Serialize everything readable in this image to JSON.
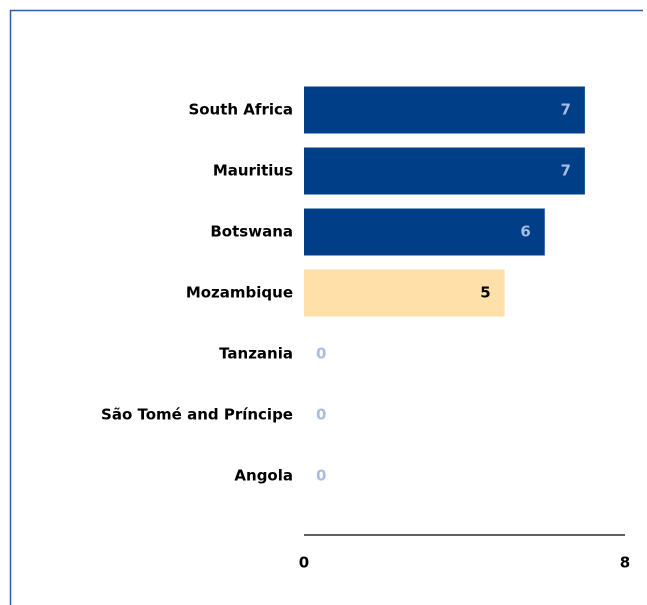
{
  "chart_data": {
    "type": "bar",
    "orientation": "horizontal",
    "categories": [
      "South Africa",
      "Mauritius",
      "Botswana",
      "Mozambique",
      "Tanzania",
      "São Tomé and Príncipe",
      "Angola"
    ],
    "values": [
      7,
      7,
      6,
      5,
      0,
      0,
      0
    ],
    "colors": [
      "#003f87",
      "#003f87",
      "#003f87",
      "#ffe0a8",
      "#003f87",
      "#003f87",
      "#003f87"
    ],
    "xlim": [
      0,
      8
    ],
    "xticks": [
      0,
      8
    ],
    "grid": false
  }
}
